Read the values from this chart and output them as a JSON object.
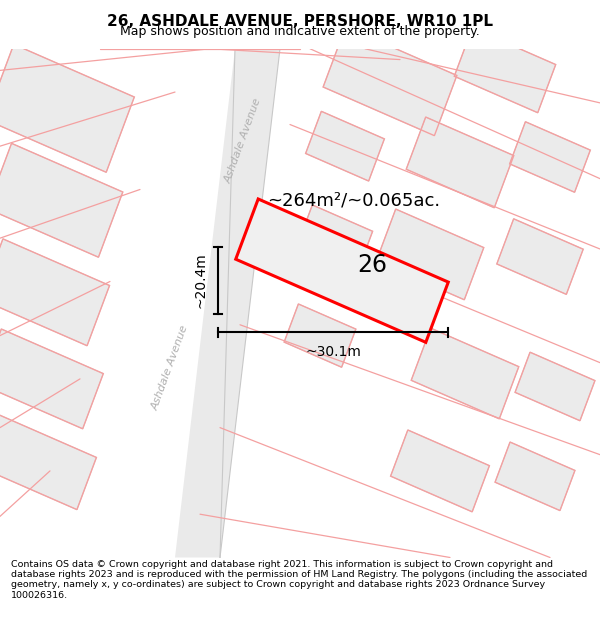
{
  "title": "26, ASHDALE AVENUE, PERSHORE, WR10 1PL",
  "subtitle": "Map shows position and indicative extent of the property.",
  "footer": "Contains OS data © Crown copyright and database right 2021. This information is subject to Crown copyright and database rights 2023 and is reproduced with the permission of HM Land Registry. The polygons (including the associated geometry, namely x, y co-ordinates) are subject to Crown copyright and database rights 2023 Ordnance Survey 100026316.",
  "area_label": "~264m²/~0.065ac.",
  "number_label": "26",
  "dim_width": "~30.1m",
  "dim_height": "~20.4m",
  "road_label1": "Ashdale Avenue",
  "road_label2": "Ashdale Avenue",
  "title_fontsize": 11,
  "subtitle_fontsize": 9,
  "footer_fontsize": 6.8,
  "map_bg": "#f7f7f7",
  "building_face": "#ebebeb",
  "building_edge": "#c8c8c8",
  "plot_red_edge": "#ff0000",
  "plot_face": "#f0f0f0",
  "road_color": "#e8e8e8",
  "red_outline_color": "#f4a0a0"
}
